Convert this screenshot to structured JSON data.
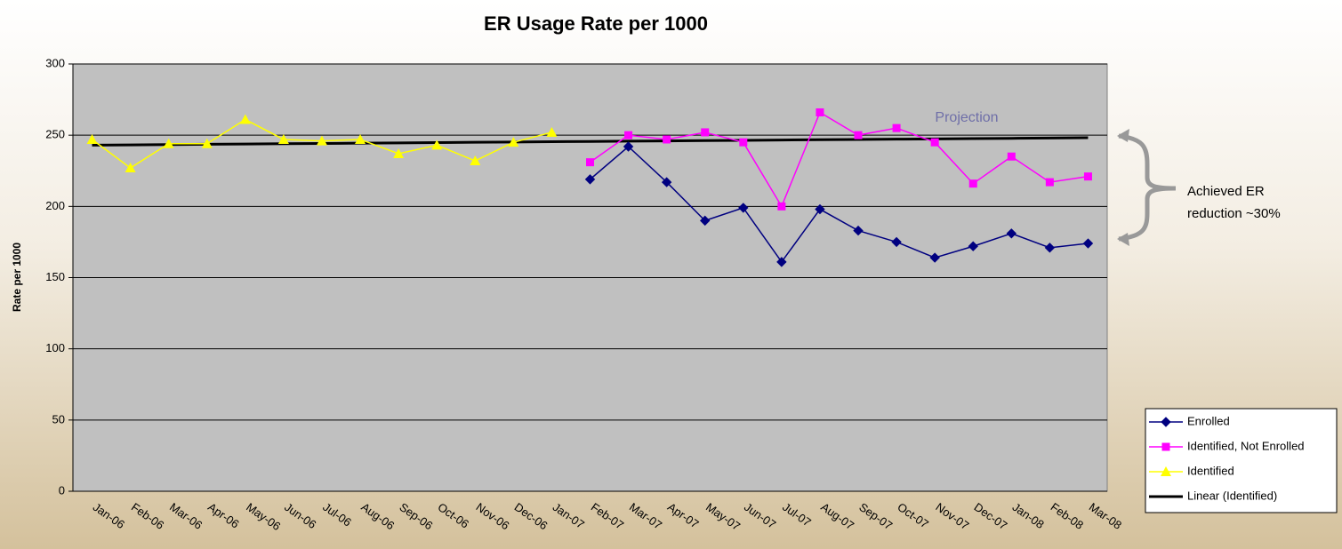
{
  "chart_data": {
    "type": "line",
    "title": "ER Usage Rate per 1000",
    "y_label": "Rate per 1000",
    "categories": [
      "Jan-06",
      "Feb-06",
      "Mar-06",
      "Apr-06",
      "May-06",
      "Jun-06",
      "Jul-06",
      "Aug-06",
      "Sep-06",
      "Oct-06",
      "Nov-06",
      "Dec-06",
      "Jan-07",
      "Feb-07",
      "Mar-07",
      "Apr-07",
      "May-07",
      "Jun-07",
      "Jul-07",
      "Aug-07",
      "Sep-07",
      "Oct-07",
      "Nov-07",
      "Dec-07",
      "Jan-08",
      "Feb-08",
      "Mar-08"
    ],
    "series": [
      {
        "name": "Enrolled",
        "color": "#000080",
        "marker": "diamond",
        "values": [
          null,
          null,
          null,
          null,
          null,
          null,
          null,
          null,
          null,
          null,
          null,
          null,
          null,
          219,
          242,
          217,
          190,
          199,
          161,
          198,
          183,
          175,
          164,
          172,
          181,
          171,
          174
        ]
      },
      {
        "name": "Identified, Not Enrolled",
        "color": "#ff00ff",
        "marker": "square",
        "values": [
          null,
          null,
          null,
          null,
          null,
          null,
          null,
          null,
          null,
          null,
          null,
          null,
          null,
          231,
          250,
          247,
          252,
          245,
          200,
          266,
          250,
          255,
          245,
          216,
          235,
          217,
          221
        ]
      },
      {
        "name": "Identified",
        "color": "#ffff00",
        "marker": "triangle",
        "values": [
          247,
          227,
          244,
          244,
          261,
          247,
          246,
          247,
          237,
          243,
          232,
          245,
          252,
          null,
          null,
          null,
          null,
          null,
          null,
          null,
          null,
          null,
          null,
          null,
          null,
          null,
          null
        ]
      },
      {
        "name": "Linear (Identified)",
        "color": "#000000",
        "marker": "none",
        "values": [
          243,
          243.2,
          243.4,
          243.6,
          243.8,
          244,
          244.2,
          244.4,
          244.6,
          244.8,
          245,
          245.2,
          245.4,
          245.6,
          245.8,
          246,
          246.2,
          246.4,
          246.6,
          246.8,
          247,
          247.2,
          247.4,
          247.6,
          247.8,
          248,
          248.2
        ]
      }
    ],
    "ylim": [
      0,
      300
    ],
    "yticks": [
      0,
      50,
      100,
      150,
      200,
      250,
      300
    ],
    "grid": true,
    "legend": "bottom-right",
    "projection_label": "Projection",
    "reduction_label": [
      "Achieved ER",
      "reduction ~30%"
    ]
  }
}
